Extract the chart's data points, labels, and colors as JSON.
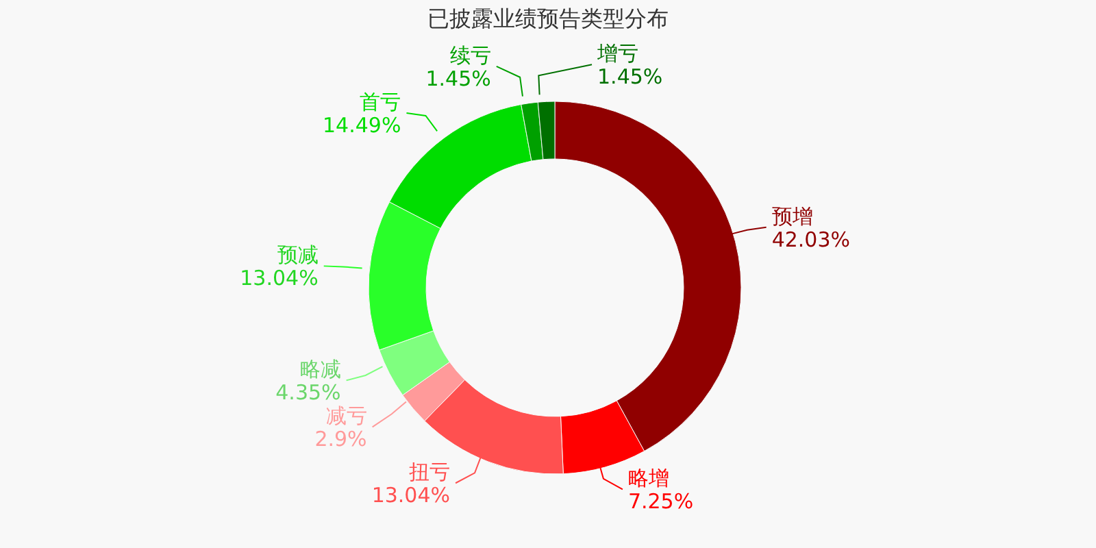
{
  "chart_data": {
    "type": "donut",
    "title": "已披露业绩预告类型分布",
    "categories": [
      "预增",
      "略增",
      "扭亏",
      "减亏",
      "略减",
      "预减",
      "首亏",
      "续亏",
      "增亏"
    ],
    "values": [
      42.03,
      7.25,
      13.04,
      2.9,
      4.35,
      13.04,
      14.49,
      1.45,
      1.45
    ],
    "value_labels": [
      "42.03%",
      "7.25%",
      "13.04%",
      "2.9%",
      "4.35%",
      "13.04%",
      "14.49%",
      "1.45%",
      "1.45%"
    ],
    "colors": [
      "#900000",
      "#ff0000",
      "#ff5050",
      "#ff9a9a",
      "#7fff7f",
      "#29ff29",
      "#00dd00",
      "#00a000",
      "#007000"
    ]
  }
}
